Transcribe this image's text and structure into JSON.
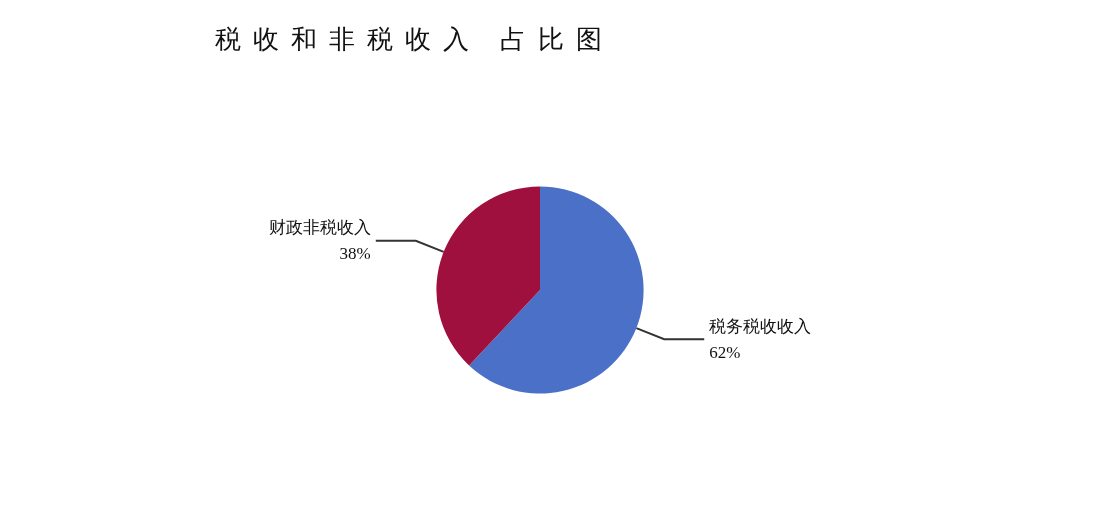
{
  "chart_data": {
    "type": "pie",
    "title": "税收和非税收入 占比图",
    "categories": [
      "税务税收收入",
      "财政非税收入"
    ],
    "values": [
      62,
      38
    ],
    "colors": [
      "#4a70c8",
      "#a0103e"
    ],
    "value_labels": [
      "62%",
      "38%"
    ],
    "legend": false
  }
}
